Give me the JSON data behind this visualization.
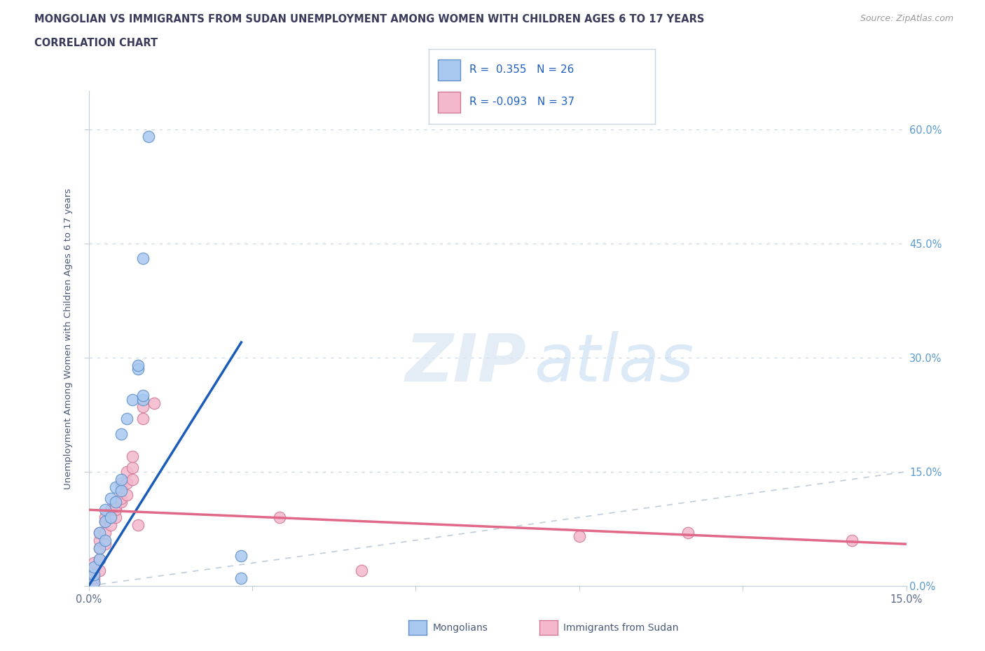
{
  "title_line1": "MONGOLIAN VS IMMIGRANTS FROM SUDAN UNEMPLOYMENT AMONG WOMEN WITH CHILDREN AGES 6 TO 17 YEARS",
  "title_line2": "CORRELATION CHART",
  "source_text": "Source: ZipAtlas.com",
  "ylabel": "Unemployment Among Women with Children Ages 6 to 17 years",
  "xlim": [
    0.0,
    0.15
  ],
  "ylim": [
    0.0,
    0.65
  ],
  "mongolian_color": "#a8c8f0",
  "sudan_color": "#f4b8cc",
  "mongolian_edge": "#6090c8",
  "sudan_edge": "#d07898",
  "trend_mongolian_color": "#1a5cb8",
  "trend_sudan_color": "#e06888",
  "diagonal_color": "#c0ccd8",
  "R_mongolian": 0.355,
  "N_mongolian": 26,
  "R_sudan": -0.093,
  "N_sudan": 37,
  "mongolian_x": [
    0.001,
    0.001,
    0.001,
    0.002,
    0.002,
    0.002,
    0.003,
    0.003,
    0.003,
    0.004,
    0.004,
    0.005,
    0.005,
    0.006,
    0.006,
    0.006,
    0.007,
    0.008,
    0.009,
    0.009,
    0.01,
    0.01,
    0.01,
    0.011,
    0.028,
    0.028
  ],
  "mongolian_y": [
    0.005,
    0.015,
    0.025,
    0.035,
    0.05,
    0.07,
    0.06,
    0.085,
    0.1,
    0.09,
    0.115,
    0.11,
    0.13,
    0.125,
    0.14,
    0.2,
    0.22,
    0.245,
    0.285,
    0.29,
    0.245,
    0.25,
    0.43,
    0.59,
    0.01,
    0.04
  ],
  "sudan_x": [
    0.001,
    0.001,
    0.001,
    0.001,
    0.002,
    0.002,
    0.002,
    0.002,
    0.002,
    0.003,
    0.003,
    0.003,
    0.003,
    0.004,
    0.004,
    0.005,
    0.005,
    0.005,
    0.006,
    0.006,
    0.006,
    0.006,
    0.007,
    0.007,
    0.007,
    0.008,
    0.008,
    0.008,
    0.009,
    0.01,
    0.01,
    0.012,
    0.035,
    0.05,
    0.09,
    0.11,
    0.14
  ],
  "sudan_y": [
    0.005,
    0.01,
    0.02,
    0.03,
    0.02,
    0.035,
    0.05,
    0.06,
    0.07,
    0.055,
    0.07,
    0.085,
    0.09,
    0.08,
    0.1,
    0.09,
    0.1,
    0.105,
    0.11,
    0.115,
    0.13,
    0.135,
    0.12,
    0.135,
    0.15,
    0.14,
    0.155,
    0.17,
    0.08,
    0.22,
    0.235,
    0.24,
    0.09,
    0.02,
    0.065,
    0.07,
    0.06
  ],
  "mongolian_trend_x": [
    0.0,
    0.028
  ],
  "mongolian_trend_y": [
    0.0,
    0.32
  ],
  "sudan_trend_x": [
    0.0,
    0.15
  ],
  "sudan_trend_y": [
    0.1,
    0.055
  ]
}
